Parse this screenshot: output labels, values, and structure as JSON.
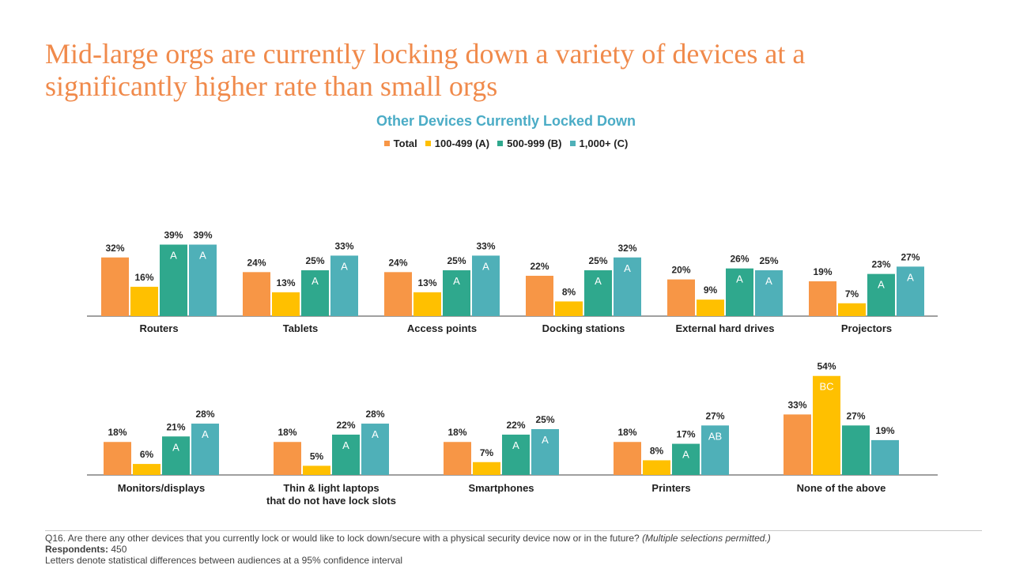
{
  "slide": {
    "title_line1": "Mid-large orgs are currently locking down a variety of devices at a",
    "title_line2": "significantly higher rate than small orgs",
    "title_color": "#F08A4B"
  },
  "footer": {
    "question": "Q16. Are there any other devices that you currently lock or would like to lock down/secure with a physical security device now or in the future?",
    "question_note": "(Multiple selections permitted.)",
    "respondents_label": "Respondents:",
    "respondents_value": "450",
    "note": "Letters denote statistical differences between audiences at a 95% confidence interval"
  },
  "chart_data": {
    "type": "bar",
    "title": "Other Devices Currently Locked Down",
    "title_color": "#4BACC6",
    "legend": {
      "position": "top-center"
    },
    "value_suffix": "%",
    "series": [
      {
        "name": "Total",
        "color": "#F79646"
      },
      {
        "name": "100-499 (A)",
        "color": "#FFC000"
      },
      {
        "name": "500-999 (B)",
        "color": "#2FA88D"
      },
      {
        "name": "1,000+ (C)",
        "color": "#4FB0B8"
      }
    ],
    "panels": [
      {
        "categories": [
          "Routers",
          "Tablets",
          "Access points",
          "Docking stations",
          "External hard drives",
          "Projectors"
        ],
        "values": [
          [
            32,
            16,
            39,
            39
          ],
          [
            24,
            13,
            25,
            33
          ],
          [
            24,
            13,
            25,
            33
          ],
          [
            22,
            8,
            25,
            32
          ],
          [
            20,
            9,
            26,
            25
          ],
          [
            19,
            7,
            23,
            27
          ]
        ],
        "sig_letters": [
          [
            "",
            "",
            "A",
            "A"
          ],
          [
            "",
            "",
            "A",
            "A"
          ],
          [
            "",
            "",
            "A",
            "A"
          ],
          [
            "",
            "",
            "A",
            "A"
          ],
          [
            "",
            "",
            "A",
            "A"
          ],
          [
            "",
            "",
            "A",
            "A"
          ]
        ]
      },
      {
        "categories": [
          "Monitors/displays",
          "Thin & light laptops\nthat do not have lock slots",
          "Smartphones",
          "Printers",
          "None of the above"
        ],
        "values": [
          [
            18,
            6,
            21,
            28
          ],
          [
            18,
            5,
            22,
            28
          ],
          [
            18,
            7,
            22,
            25
          ],
          [
            18,
            8,
            17,
            27
          ],
          [
            33,
            54,
            27,
            19
          ]
        ],
        "sig_letters": [
          [
            "",
            "",
            "A",
            "A"
          ],
          [
            "",
            "",
            "A",
            "A"
          ],
          [
            "",
            "",
            "A",
            "A"
          ],
          [
            "",
            "",
            "A",
            "AB"
          ],
          [
            "",
            "BC",
            "",
            ""
          ]
        ]
      }
    ]
  }
}
